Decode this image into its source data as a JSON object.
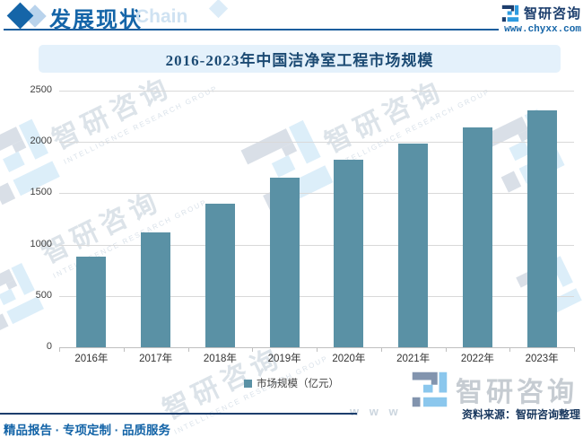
{
  "header": {
    "section_title": "发展现状",
    "section_watermark": "Chain",
    "brand_name": "智研咨询",
    "brand_url": "www.chyxx.com"
  },
  "chart_data": {
    "type": "bar",
    "title": "2016-2023年中国洁净室工程市场规模",
    "categories": [
      "2016年",
      "2017年",
      "2018年",
      "2019年",
      "2020年",
      "2021年",
      "2022年",
      "2023年"
    ],
    "values": [
      880,
      1115,
      1400,
      1650,
      1830,
      1985,
      2140,
      2310
    ],
    "series_name": "市场规模（亿元）",
    "ylim": [
      0,
      2500
    ],
    "yticks": [
      "2500",
      "2000",
      "1500",
      "1000",
      "500",
      "0"
    ],
    "grid": "horizontal gridlines on",
    "legend_position": "bottom",
    "bar_color": "#5a91a5"
  },
  "footer": {
    "source": "资料来源：智研咨询整理",
    "services": "精品报告 · 专项定制 · 品质服务"
  },
  "watermark": {
    "brand": "智研咨询",
    "tagline": "INTELLIGENCE RESEARCH GROUP",
    "url_fragment": "w w w"
  },
  "colors": {
    "brand_blue": "#1565a8",
    "navy": "#1c3e6d",
    "banner_bg": "#e4f1fb",
    "bar": "#5a91a5",
    "gridline": "#d9d9d9"
  }
}
